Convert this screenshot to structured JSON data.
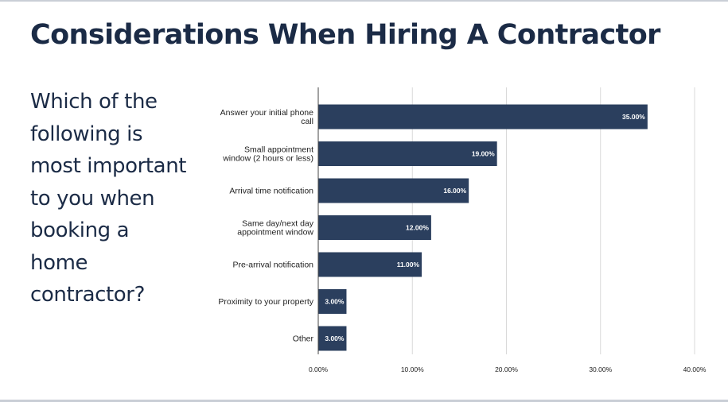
{
  "title": "Considerations When Hiring A Contractor",
  "question_lines": [
    "Which of the",
    "following is",
    "most important",
    "to you when",
    "booking a",
    "home",
    "contractor?"
  ],
  "colors": {
    "bar": "#2b3f5e",
    "title": "#1b2b46",
    "grid": "#d9d9d9",
    "axis": "#444444"
  },
  "chart_data": {
    "type": "bar",
    "orientation": "horizontal",
    "categories": [
      [
        "Answer your initial phone",
        "call"
      ],
      [
        "Small appointment",
        "window (2 hours or less)"
      ],
      [
        "Arrival time notification"
      ],
      [
        "Same day/next day",
        "appointment window"
      ],
      [
        "Pre-arrival notification"
      ],
      [
        "Proximity to your property"
      ],
      [
        "Other"
      ]
    ],
    "values": [
      35,
      19,
      16,
      12,
      11,
      3,
      3
    ],
    "value_labels": [
      "35.00%",
      "19.00%",
      "16.00%",
      "12.00%",
      "11.00%",
      "3.00%",
      "3.00%"
    ],
    "xlim": [
      0,
      40
    ],
    "xticks": [
      0,
      10,
      20,
      30,
      40
    ],
    "xtick_labels": [
      "0.00%",
      "10.00%",
      "20.00%",
      "30.00%",
      "40.00%"
    ],
    "grid": true,
    "legend": "none",
    "title": "",
    "xlabel": "",
    "ylabel": ""
  }
}
